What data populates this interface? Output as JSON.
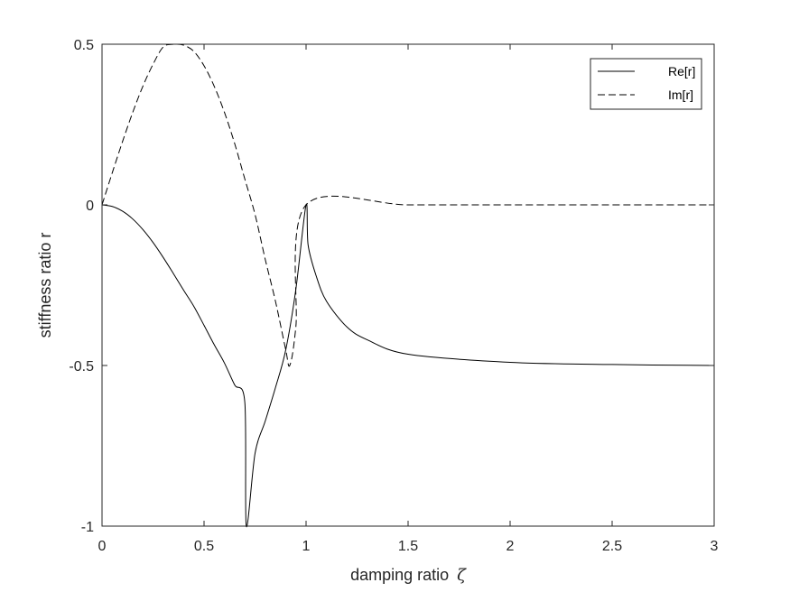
{
  "chart_data": {
    "type": "line",
    "title": "",
    "xlabel": "damping ratio",
    "xlabel_symbol": "ζ",
    "ylabel": "stiffness ratio r",
    "xlim": [
      0,
      3
    ],
    "ylim": [
      -1,
      0.5
    ],
    "xticks": [
      "0",
      "0.5",
      "1",
      "1.5",
      "2",
      "2.5",
      "3"
    ],
    "yticks": [
      "-1",
      "-0.5",
      "0",
      "0.5"
    ],
    "grid": false,
    "legend_position": "top-right",
    "series": [
      {
        "name": "Re[r]",
        "style": "solid",
        "color": "#000000",
        "x": [
          0,
          0.05,
          0.1,
          0.15,
          0.2,
          0.25,
          0.3,
          0.35,
          0.4,
          0.45,
          0.5,
          0.55,
          0.6,
          0.65,
          0.7,
          0.707,
          0.75,
          0.8,
          0.85,
          0.9,
          0.95,
          1.0,
          1.01,
          1.05,
          1.1,
          1.2,
          1.3,
          1.5,
          2.0,
          2.5,
          3.0
        ],
        "y": [
          0,
          -0.005,
          -0.0196,
          -0.0437,
          -0.0768,
          -0.1172,
          -0.1638,
          -0.2141,
          -0.2658,
          -0.3159,
          -0.375,
          -0.4354,
          -0.4924,
          -0.5605,
          -0.6162,
          -1.0,
          -0.7734,
          -0.6728,
          -0.5689,
          -0.4526,
          -0.2628,
          0,
          -0.125,
          -0.222,
          -0.3,
          -0.38,
          -0.42,
          -0.465,
          -0.49,
          -0.497,
          -0.5
        ]
      },
      {
        "name": "Im[r]",
        "style": "dashed",
        "color": "#000000",
        "x": [
          0,
          0.05,
          0.1,
          0.15,
          0.2,
          0.25,
          0.3,
          0.35,
          0.4,
          0.45,
          0.5,
          0.55,
          0.6,
          0.65,
          0.7,
          0.75,
          0.8,
          0.85,
          0.9,
          0.92,
          0.95,
          1.0,
          1.5,
          2.0,
          2.5,
          3.0
        ],
        "y": [
          0,
          0.0995,
          0.196,
          0.287,
          0.369,
          0.4375,
          0.4914,
          0.4996,
          0.497,
          0.4776,
          0.433,
          0.369,
          0.288,
          0.191,
          0.08,
          -0.03,
          -0.17,
          -0.3,
          -0.45,
          -0.5,
          -0.38,
          0,
          0,
          0,
          0,
          0
        ]
      }
    ]
  }
}
